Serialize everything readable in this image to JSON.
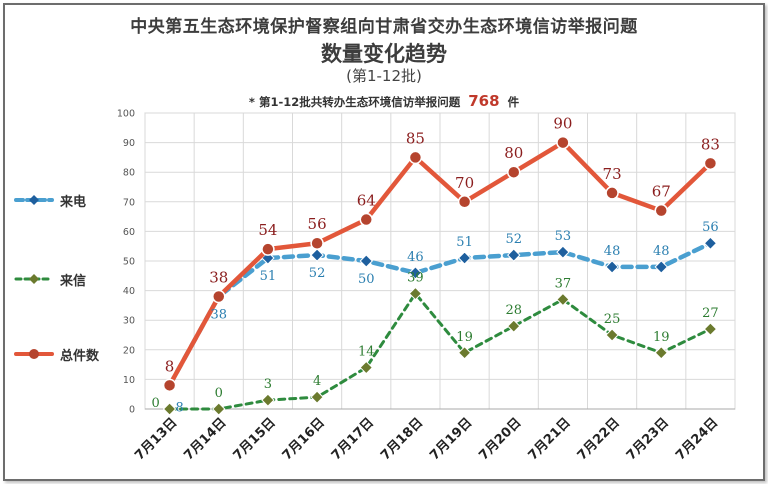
{
  "chart_data": {
    "type": "line",
    "title": "中央第五生态环境保护督察组向甘肃省交办生态环境信访举报问题",
    "subtitle": "数量变化趋势",
    "batch_note": "(第1-12批)",
    "annotation": {
      "prefix": "* 第1-12批共转办生态环境信访举报问题",
      "total": "768",
      "suffix": "件"
    },
    "categories": [
      "7月13日",
      "7月14日",
      "7月15日",
      "7月16日",
      "7月17日",
      "7月18日",
      "7月19日",
      "7月20日",
      "7月21日",
      "7月22日",
      "7月23日",
      "7月24日"
    ],
    "ylim": [
      0,
      100
    ],
    "yticks": [
      0,
      10,
      20,
      30,
      40,
      50,
      60,
      70,
      80,
      90,
      100
    ],
    "grid": true,
    "legend_position": "left",
    "series": [
      {
        "name": "来电",
        "values": [
          8,
          38,
          51,
          52,
          50,
          46,
          51,
          52,
          53,
          48,
          48,
          56
        ],
        "color": "#4a9fd0",
        "label_color": "#2b7fb0",
        "marker_color": "#1e5f9e",
        "marker": "diamond",
        "dashed": true
      },
      {
        "name": "来信",
        "values": [
          0,
          0,
          3,
          4,
          14,
          39,
          19,
          28,
          37,
          25,
          19,
          27
        ],
        "color": "#2e8b3e",
        "label_color": "#2e7d32",
        "marker_color": "#6b7a2e",
        "marker": "diamond",
        "dashed": true
      },
      {
        "name": "总件数",
        "values": [
          8,
          38,
          54,
          56,
          64,
          85,
          70,
          80,
          90,
          73,
          67,
          83
        ],
        "color": "#e2573a",
        "label_color": "#8b1e1e",
        "marker_color": "#b5442e",
        "marker": "circle",
        "dashed": false
      }
    ]
  }
}
